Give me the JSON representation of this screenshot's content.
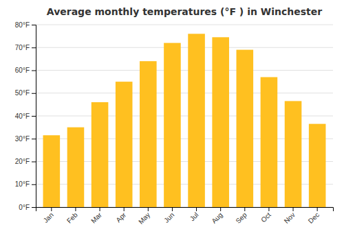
{
  "chart_data": {
    "type": "bar",
    "title": "Average monthly temperatures (°F ) in Winchester",
    "categories": [
      "Jan",
      "Feb",
      "Mar",
      "Apr",
      "May",
      "Jun",
      "Jul",
      "Aug",
      "Sep",
      "Oct",
      "Nov",
      "Dec"
    ],
    "values": [
      31.5,
      35.0,
      46.0,
      55.0,
      64.0,
      72.0,
      76.0,
      74.5,
      69.0,
      57.0,
      46.5,
      36.5
    ],
    "color": "#FFC020",
    "ylim": [
      0,
      80
    ],
    "yticks": [
      {
        "value": 0,
        "label": "0°F"
      },
      {
        "value": 10,
        "label": "10°F"
      },
      {
        "value": 20,
        "label": "20°F"
      },
      {
        "value": 30,
        "label": "30°F"
      },
      {
        "value": 40,
        "label": "40°F"
      },
      {
        "value": 50,
        "label": "50°F"
      },
      {
        "value": 60,
        "label": "60°F"
      },
      {
        "value": 70,
        "label": "70°F"
      },
      {
        "value": 80,
        "label": "80°F"
      }
    ],
    "grid": true
  }
}
